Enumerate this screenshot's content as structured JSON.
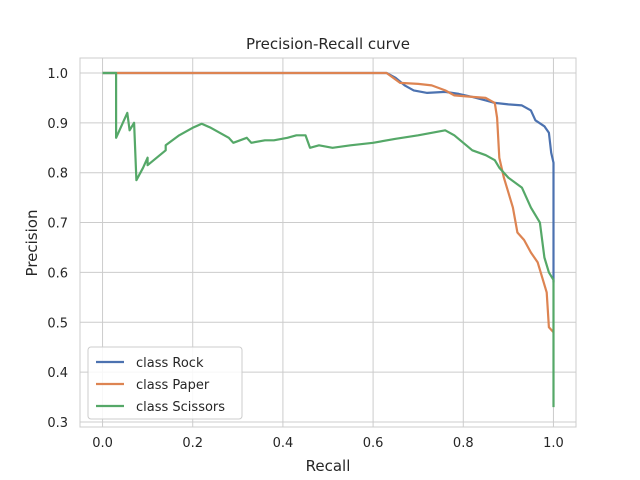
{
  "chart_data": {
    "type": "line",
    "title": "Precision-Recall curve",
    "xlabel": "Recall",
    "ylabel": "Precision",
    "xlim": [
      -0.05,
      1.05
    ],
    "ylim": [
      0.29,
      1.03
    ],
    "xticks": [
      0.0,
      0.2,
      0.4,
      0.6,
      0.8,
      1.0
    ],
    "xtick_labels": [
      "0.0",
      "0.2",
      "0.4",
      "0.6",
      "0.8",
      "1.0"
    ],
    "yticks": [
      0.3,
      0.4,
      0.5,
      0.6,
      0.7,
      0.8,
      0.9,
      1.0
    ],
    "ytick_labels": [
      "0.3",
      "0.4",
      "0.5",
      "0.6",
      "0.7",
      "0.8",
      "0.9",
      "1.0"
    ],
    "grid": true,
    "legend_position": "lower-left",
    "series": [
      {
        "name": "class Rock",
        "color": "#4c72b0",
        "points": [
          [
            0.0,
            1.0
          ],
          [
            0.63,
            1.0
          ],
          [
            0.65,
            0.99
          ],
          [
            0.67,
            0.975
          ],
          [
            0.69,
            0.965
          ],
          [
            0.72,
            0.96
          ],
          [
            0.76,
            0.962
          ],
          [
            0.79,
            0.958
          ],
          [
            0.82,
            0.952
          ],
          [
            0.85,
            0.945
          ],
          [
            0.87,
            0.94
          ],
          [
            0.9,
            0.937
          ],
          [
            0.93,
            0.935
          ],
          [
            0.95,
            0.925
          ],
          [
            0.96,
            0.905
          ],
          [
            0.98,
            0.893
          ],
          [
            0.99,
            0.88
          ],
          [
            0.995,
            0.84
          ],
          [
            1.0,
            0.82
          ],
          [
            1.0,
            0.58
          ]
        ]
      },
      {
        "name": "class Paper",
        "color": "#dd8452",
        "points": [
          [
            0.0,
            1.0
          ],
          [
            0.63,
            1.0
          ],
          [
            0.66,
            0.98
          ],
          [
            0.7,
            0.978
          ],
          [
            0.73,
            0.975
          ],
          [
            0.76,
            0.965
          ],
          [
            0.78,
            0.955
          ],
          [
            0.82,
            0.952
          ],
          [
            0.85,
            0.95
          ],
          [
            0.87,
            0.94
          ],
          [
            0.875,
            0.91
          ],
          [
            0.88,
            0.83
          ],
          [
            0.89,
            0.79
          ],
          [
            0.9,
            0.76
          ],
          [
            0.91,
            0.73
          ],
          [
            0.92,
            0.68
          ],
          [
            0.935,
            0.665
          ],
          [
            0.95,
            0.64
          ],
          [
            0.965,
            0.62
          ],
          [
            0.975,
            0.59
          ],
          [
            0.985,
            0.56
          ],
          [
            0.99,
            0.49
          ],
          [
            1.0,
            0.48
          ]
        ]
      },
      {
        "name": "class Scissors",
        "color": "#55a868",
        "points": [
          [
            0.0,
            1.0
          ],
          [
            0.03,
            1.0
          ],
          [
            0.03,
            0.87
          ],
          [
            0.055,
            0.92
          ],
          [
            0.06,
            0.885
          ],
          [
            0.07,
            0.9
          ],
          [
            0.075,
            0.785
          ],
          [
            0.09,
            0.81
          ],
          [
            0.1,
            0.83
          ],
          [
            0.1,
            0.815
          ],
          [
            0.14,
            0.845
          ],
          [
            0.14,
            0.855
          ],
          [
            0.17,
            0.875
          ],
          [
            0.2,
            0.89
          ],
          [
            0.22,
            0.898
          ],
          [
            0.24,
            0.89
          ],
          [
            0.26,
            0.88
          ],
          [
            0.28,
            0.87
          ],
          [
            0.29,
            0.86
          ],
          [
            0.32,
            0.87
          ],
          [
            0.33,
            0.86
          ],
          [
            0.36,
            0.865
          ],
          [
            0.38,
            0.865
          ],
          [
            0.41,
            0.87
          ],
          [
            0.43,
            0.875
          ],
          [
            0.45,
            0.875
          ],
          [
            0.46,
            0.85
          ],
          [
            0.48,
            0.855
          ],
          [
            0.51,
            0.85
          ],
          [
            0.55,
            0.855
          ],
          [
            0.6,
            0.86
          ],
          [
            0.65,
            0.868
          ],
          [
            0.7,
            0.875
          ],
          [
            0.76,
            0.885
          ],
          [
            0.78,
            0.875
          ],
          [
            0.8,
            0.86
          ],
          [
            0.82,
            0.845
          ],
          [
            0.85,
            0.835
          ],
          [
            0.87,
            0.825
          ],
          [
            0.88,
            0.81
          ],
          [
            0.9,
            0.79
          ],
          [
            0.93,
            0.77
          ],
          [
            0.95,
            0.73
          ],
          [
            0.97,
            0.7
          ],
          [
            0.98,
            0.63
          ],
          [
            0.99,
            0.6
          ],
          [
            1.0,
            0.585
          ],
          [
            1.0,
            0.33
          ]
        ]
      }
    ]
  }
}
